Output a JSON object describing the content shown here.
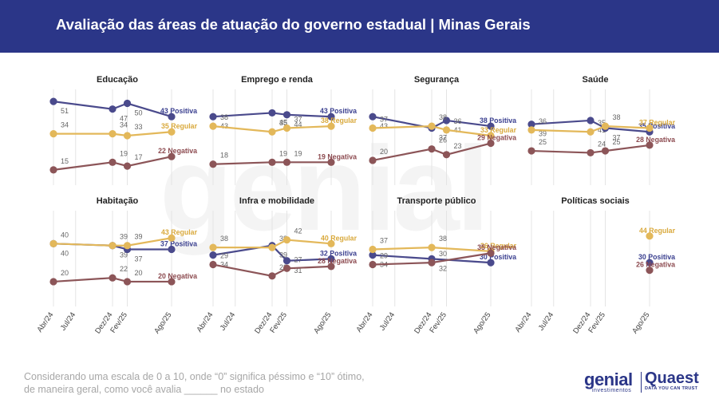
{
  "title": "Avaliação das áreas de atuação do governo estadual | Minas Gerais",
  "footnote": {
    "line1": "Considerando uma escala de 0 a 10, onde “0” significa péssimo e “10” ótimo,",
    "line2": "de maneira geral, como você avalia ______ no estado"
  },
  "logos": {
    "genial": "genial",
    "genial_sub": "investimentos",
    "quaest": "Quaest",
    "quaest_sub": "DATA YOU CAN TRUST"
  },
  "watermark": "genial",
  "colors": {
    "header": "#2b3688",
    "positiva": "#4a4a8c",
    "regular": "#e3b85a",
    "negativa": "#8c5558",
    "label_positiva": "#3a3f8f",
    "label_regular": "#d9a93c",
    "label_negativa": "#8c4a4f"
  },
  "chart_data": [
    {
      "type": "line",
      "title": "Educação",
      "x": [
        "Abr/24",
        "Dez/24",
        "Fev/25",
        "Ago/25"
      ],
      "series": [
        {
          "name": "Positiva",
          "values": [
            51,
            47,
            50,
            43
          ],
          "end_label": "43 Positiva"
        },
        {
          "name": "Regular",
          "values": [
            34,
            34,
            33,
            35
          ],
          "end_label": "35 Regular"
        },
        {
          "name": "Negativa",
          "values": [
            15,
            19,
            17,
            22
          ],
          "end_label": "22 Negativa"
        }
      ]
    },
    {
      "type": "line",
      "title": "Emprego e renda",
      "x": [
        "Abr/24",
        "Dez/24",
        "Fev/25",
        "Ago/25"
      ],
      "series": [
        {
          "name": "Positiva",
          "values": [
            43,
            45,
            44,
            43
          ],
          "end_label": "43 Positiva"
        },
        {
          "name": "Regular",
          "values": [
            38,
            35,
            37,
            38
          ],
          "end_label": "38 Regular"
        },
        {
          "name": "Negativa",
          "values": [
            18,
            19,
            19,
            19
          ],
          "end_label": "19 Negativa"
        }
      ]
    },
    {
      "type": "line",
      "title": "Segurança",
      "x": [
        "Abr/24",
        "Dez/24",
        "Fev/25",
        "Ago/25"
      ],
      "series": [
        {
          "name": "Positiva",
          "values": [
            43,
            37,
            41,
            38
          ],
          "end_label": "38 Positiva"
        },
        {
          "name": "Regular",
          "values": [
            37,
            38,
            36,
            33
          ],
          "end_label": "33 Regular"
        },
        {
          "name": "Negativa",
          "values": [
            20,
            26,
            23,
            29
          ],
          "end_label": "29 Negativa"
        }
      ]
    },
    {
      "type": "line",
      "title": "Saúde",
      "x": [
        "Abr/24",
        "Dez/24",
        "Fev/25",
        "Ago/25"
      ],
      "series": [
        {
          "name": "Positiva",
          "values": [
            39,
            41,
            37,
            35
          ],
          "end_label": "35 Positiva"
        },
        {
          "name": "Regular",
          "values": [
            36,
            35,
            38,
            37
          ],
          "end_label": "37 Regular"
        },
        {
          "name": "Negativa",
          "values": [
            25,
            24,
            25,
            28
          ],
          "end_label": "28 Negativa"
        }
      ]
    },
    {
      "type": "line",
      "title": "Habitação",
      "x": [
        "Abr/24",
        "Dez/24",
        "Fev/25",
        "Ago/25"
      ],
      "series": [
        {
          "name": "Positiva",
          "values": [
            40,
            39,
            37,
            37
          ],
          "end_label": "37 Positiva"
        },
        {
          "name": "Regular",
          "values": [
            40,
            39,
            39,
            43
          ],
          "end_label": "43 Regular"
        },
        {
          "name": "Negativa",
          "values": [
            20,
            22,
            20,
            20
          ],
          "end_label": "20 Negativa"
        }
      ]
    },
    {
      "type": "line",
      "title": "Infra e mobilidade",
      "x": [
        "Abr/24",
        "Dez/24",
        "Fev/25",
        "Ago/25"
      ],
      "series": [
        {
          "name": "Positiva",
          "values": [
            34,
            39,
            31,
            32
          ],
          "end_label": "32 Positiva"
        },
        {
          "name": "Regular",
          "values": [
            38,
            38,
            42,
            40
          ],
          "end_label": "40 Regular"
        },
        {
          "name": "Negativa",
          "values": [
            29,
            23,
            27,
            28
          ],
          "end_label": "28 Negativa"
        }
      ]
    },
    {
      "type": "line",
      "title": "Transporte público",
      "x": [
        "Abr/24",
        "Dez/24",
        "Ago/25"
      ],
      "series": [
        {
          "name": "Positiva",
          "values": [
            34,
            32,
            30
          ],
          "end_label": "30 Positiva"
        },
        {
          "name": "Regular",
          "values": [
            37,
            38,
            36
          ],
          "end_label": "36 Regular"
        },
        {
          "name": "Negativa",
          "values": [
            29,
            30,
            35
          ],
          "end_label": "35 Negativa"
        }
      ]
    },
    {
      "type": "line",
      "title": "Políticas sociais",
      "x": [
        "Ago/25"
      ],
      "series": [
        {
          "name": "Positiva",
          "values": [
            30
          ],
          "end_label": "30 Positiva"
        },
        {
          "name": "Regular",
          "values": [
            44
          ],
          "end_label": "44 Regular"
        },
        {
          "name": "Negativa",
          "values": [
            26
          ],
          "end_label": "26 Negativa"
        }
      ]
    }
  ],
  "x_ticks": [
    "Abr/24",
    "Jul/24",
    "Dez/24",
    "Fev/25",
    "Ago/25"
  ]
}
